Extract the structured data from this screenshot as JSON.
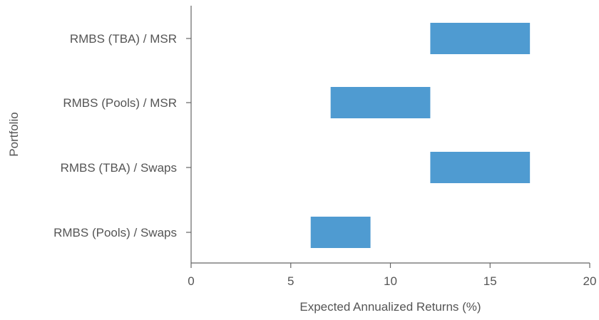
{
  "chart_data": {
    "type": "bar",
    "orientation": "horizontal",
    "style": "floating-range",
    "xlabel": "Expected Annualized Returns (%)",
    "ylabel": "Portfolio",
    "xlim": [
      0,
      20
    ],
    "xticks": [
      0,
      5,
      10,
      15,
      20
    ],
    "grid": false,
    "bar_color": "#4f9bd1",
    "categories": [
      "RMBS (TBA) / MSR",
      "RMBS (Pools) / MSR",
      "RMBS (TBA) / Swaps",
      "RMBS (Pools) / Swaps"
    ],
    "ranges": [
      {
        "category": "RMBS (TBA) / MSR",
        "low": 12,
        "high": 17
      },
      {
        "category": "RMBS (Pools) / MSR",
        "low": 7,
        "high": 12
      },
      {
        "category": "RMBS (TBA) / Swaps",
        "low": 12,
        "high": 17
      },
      {
        "category": "RMBS (Pools) / Swaps",
        "low": 6,
        "high": 9
      }
    ]
  }
}
